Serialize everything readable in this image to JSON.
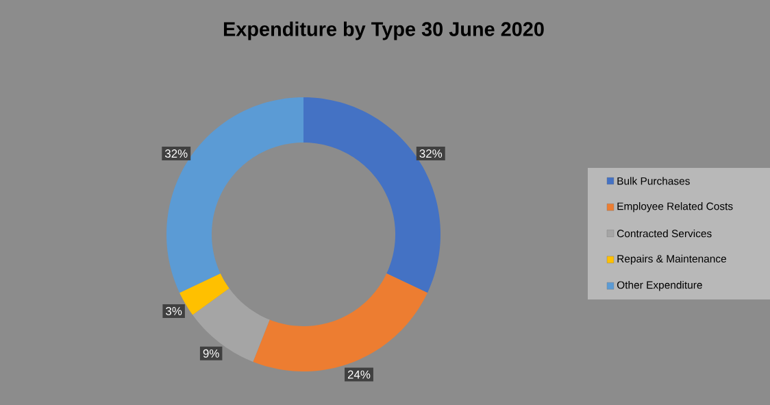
{
  "chart_data": {
    "type": "donut",
    "title": "Expenditure by Type 30 June 2020",
    "categories": [
      "Bulk Purchases",
      "Employee Related Costs",
      "Contracted Services",
      "Repairs & Maintenance",
      "Other Expenditure"
    ],
    "values": [
      32,
      24,
      9,
      3,
      32
    ],
    "colors": [
      "#4472c4",
      "#ed7d31",
      "#a5a5a5",
      "#ffc000",
      "#5b9bd5"
    ],
    "value_labels": [
      "32%",
      "24%",
      "9%",
      "3%",
      "32%"
    ],
    "legend": "right"
  }
}
